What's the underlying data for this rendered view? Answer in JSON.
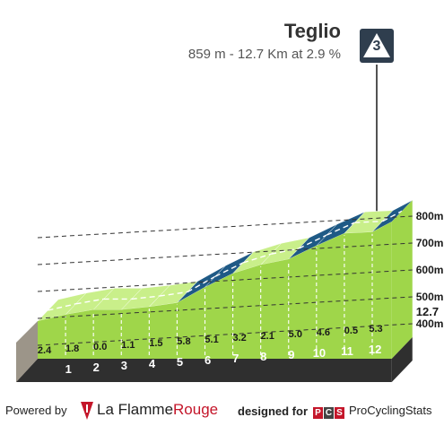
{
  "chart_data": {
    "type": "area",
    "title": "Teglio",
    "subtitle": "859 m - 12.7 Km at 2.9 %",
    "category_badge": "3",
    "x": [
      0,
      1,
      2,
      3,
      4,
      5,
      6,
      7,
      8,
      9,
      10,
      11,
      12,
      12.7
    ],
    "elevation": [
      490,
      514,
      532,
      532,
      543,
      558,
      616,
      667,
      699,
      720,
      770,
      816,
      821,
      859
    ],
    "segment_km_labels": [
      "1",
      "2",
      "3",
      "4",
      "5",
      "6",
      "7",
      "8",
      "9",
      "10",
      "11",
      "12"
    ],
    "segment_gradients": [
      "2.4",
      "1.8",
      "0.0",
      "1.1",
      "1.5",
      "5.8",
      "5.1",
      "3.2",
      "2.1",
      "5.0",
      "4.6",
      "0.5",
      "5.3"
    ],
    "steep_segments": [
      5,
      6,
      9,
      10,
      12
    ],
    "y_ticks": [
      400,
      500,
      600,
      700,
      800
    ],
    "y_tick_labels": [
      "400m",
      "500m",
      "600m",
      "700m",
      "800m"
    ],
    "ylim": [
      350,
      900
    ],
    "distance_label": "12.7",
    "colors": {
      "climb": "#9fd64a",
      "climb_top": "#c9ef8a",
      "steep": "#1f5a86",
      "steep_top": "#3c79a6",
      "base": "#2f2f2f",
      "side": "#9c9589",
      "grid": "#333333"
    }
  },
  "footer": {
    "powered_by": "Powered by",
    "lfr_la": "La Flamme",
    "lfr_rouge": "Rouge",
    "designed_for": "designed for",
    "pcs_letters": [
      "P",
      "C",
      "S"
    ],
    "pcs_name": "ProCyclingStats"
  }
}
